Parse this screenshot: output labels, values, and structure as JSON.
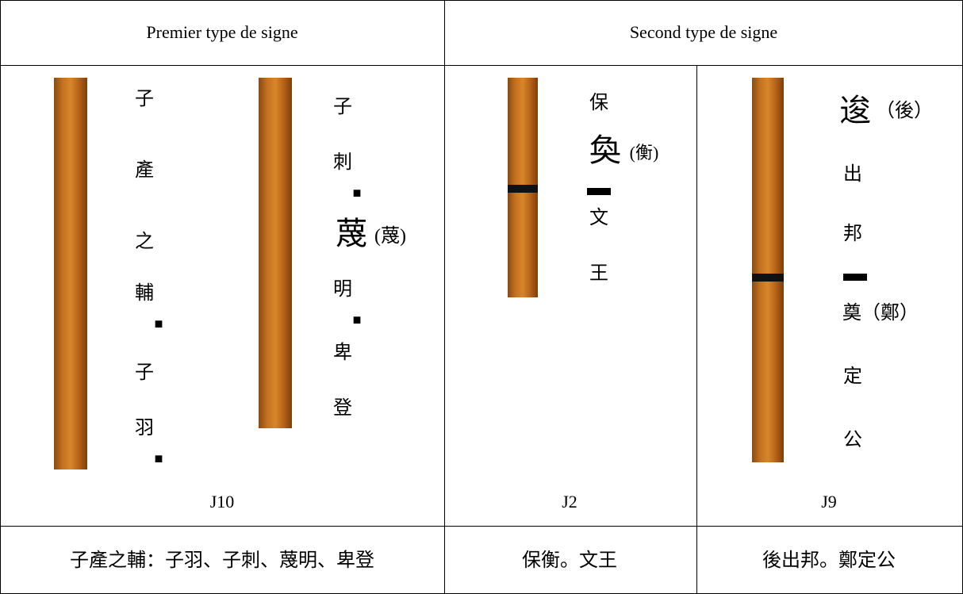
{
  "header": {
    "cells": [
      "Premier type de signe",
      "Second type de signe"
    ]
  },
  "body": {
    "cells": [
      {
        "columns": [
          [
            "子",
            "產",
            "之",
            "輔",
            "■",
            "子",
            "羽",
            "■"
          ],
          [
            "子",
            "刺",
            "■",
            "蔑",
            "(蔑)",
            "明",
            "■",
            "卑",
            "登"
          ]
        ],
        "label": "J10"
      },
      {
        "columns": [
          [
            "保",
            "奐",
            "(衡)",
            "▬",
            "文",
            "王"
          ]
        ],
        "label": "J2"
      },
      {
        "columns": [
          [
            "逡",
            "（後）",
            "出",
            "邦",
            "▬",
            "奠（鄭）",
            "定",
            "公"
          ]
        ],
        "label": "J9"
      }
    ]
  },
  "footer": {
    "cells": [
      "子產之輔：子羽、子刺、蔑明、卑登",
      "保衡。文王",
      "後出邦。鄭定公"
    ]
  }
}
